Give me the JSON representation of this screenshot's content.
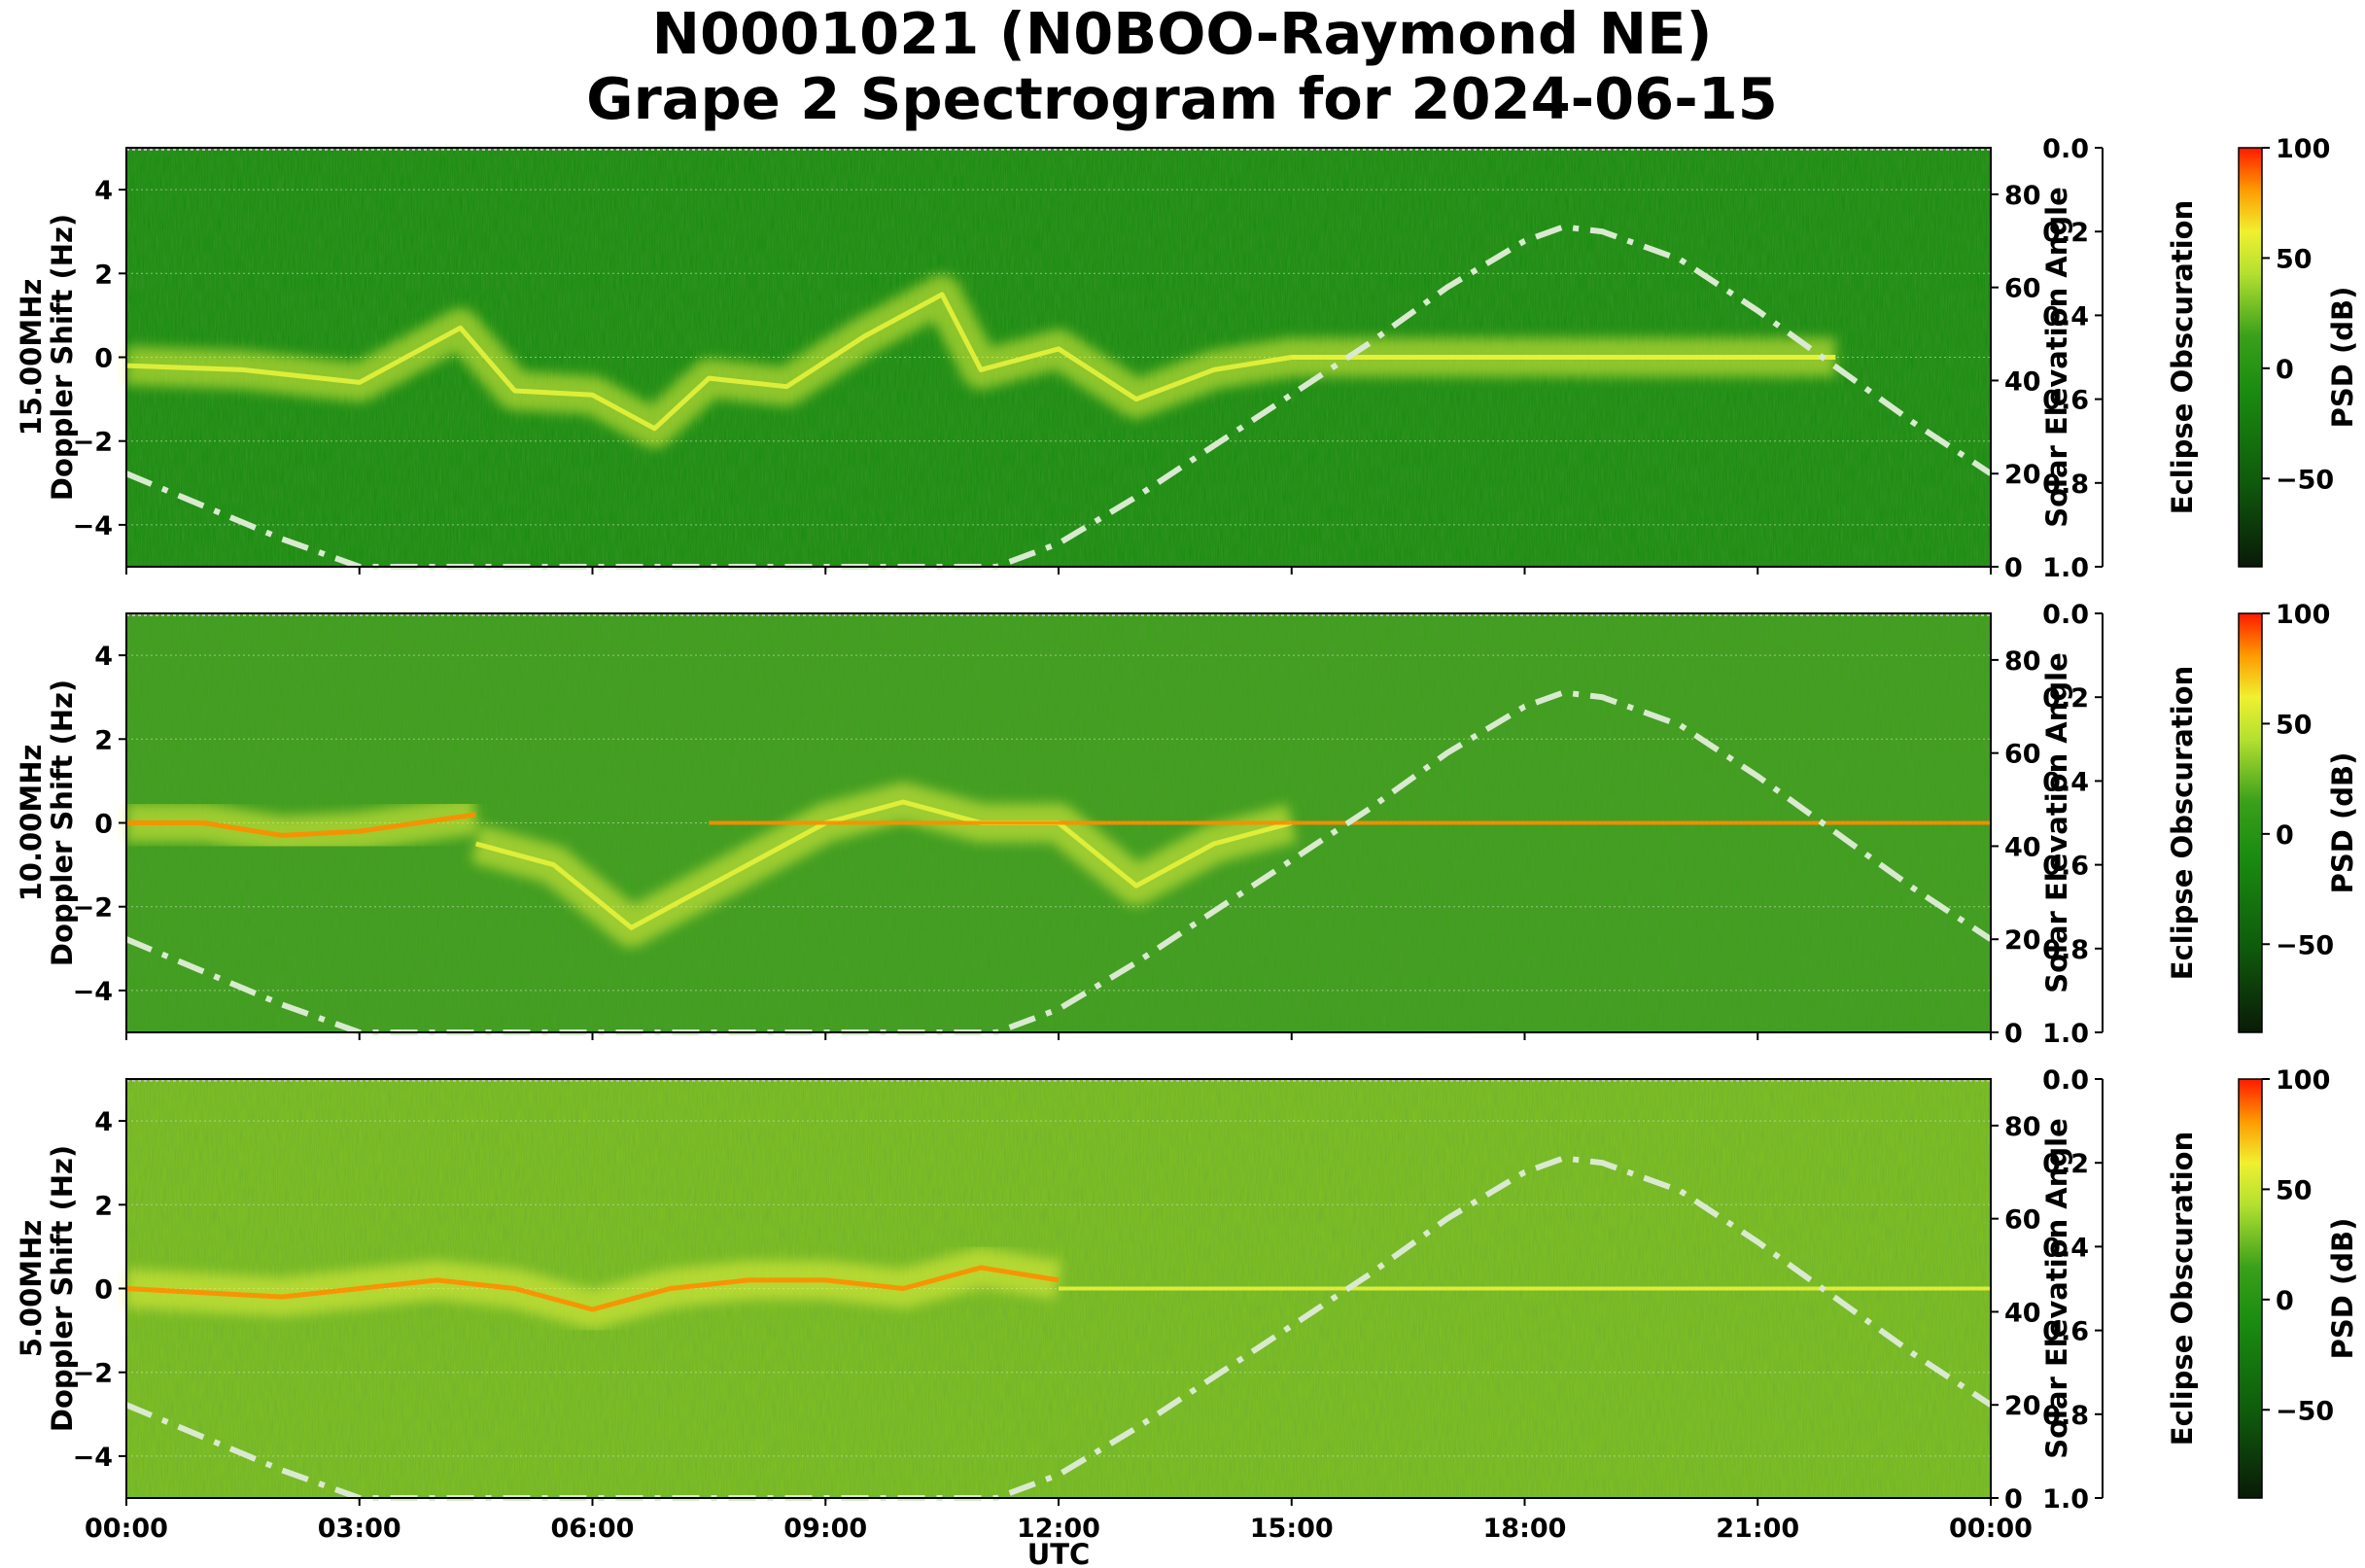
{
  "title_line1": "N0001021 (N0BOO-Raymond NE)",
  "title_line2": "Grape 2 Spectrogram for 2024-06-15",
  "colors": {
    "bg_green": "#1a8c10",
    "mid_green": "#5aaa20",
    "yellow": "#e6f23c",
    "orange": "#ff8c00",
    "red": "#ff1a00",
    "sun_curve": "#d9ead0"
  },
  "chart_data": [
    {
      "type": "heatmap",
      "panel_label": "15.00MHz",
      "ylabel": "Doppler Shift (Hz)",
      "xlabel": "",
      "ylim": [
        -5,
        5
      ],
      "yticks": [
        "4",
        "2",
        "0",
        "−2",
        "−4"
      ],
      "right_axis_label": "Solar Elevation Angle",
      "right_ylim": [
        0,
        90
      ],
      "right_ticks": [
        "80",
        "60",
        "40",
        "20",
        "0"
      ],
      "eclipse_label": "Eclipse Obscuration",
      "eclipse_ticks": [
        "0.0",
        "0.2",
        "0.4",
        "0.6",
        "0.8",
        "1.0"
      ],
      "colorbar_label": "PSD (dB)",
      "colorbar_ticks": [
        "100",
        "50",
        "0",
        "−50"
      ],
      "background": "green",
      "features": [
        {
          "type": "doppler_trace",
          "color": "yellow",
          "points": [
            [
              0,
              -0.2
            ],
            [
              1.5,
              -0.3
            ],
            [
              3,
              -0.6
            ],
            [
              4.3,
              0.7
            ],
            [
              5,
              -0.8
            ],
            [
              6,
              -0.9
            ],
            [
              6.8,
              -1.7
            ],
            [
              7.5,
              -0.5
            ],
            [
              8.5,
              -0.7
            ],
            [
              9.5,
              0.5
            ],
            [
              10.5,
              1.5
            ],
            [
              11,
              -0.3
            ],
            [
              12,
              0.2
            ],
            [
              13,
              -1
            ],
            [
              14,
              -0.3
            ],
            [
              15,
              0
            ],
            [
              18,
              0
            ],
            [
              19.5,
              0
            ],
            [
              22,
              0
            ]
          ]
        },
        {
          "type": "carrier",
          "color": "yellow",
          "from": 15,
          "to": 22,
          "y": 0
        }
      ],
      "solar_elevation": [
        [
          0,
          20
        ],
        [
          1,
          13
        ],
        [
          2,
          6
        ],
        [
          3,
          0
        ],
        [
          11.2,
          0
        ],
        [
          12,
          5
        ],
        [
          13,
          15
        ],
        [
          14,
          26
        ],
        [
          15,
          37
        ],
        [
          16,
          48
        ],
        [
          17,
          60
        ],
        [
          18,
          70
        ],
        [
          18.5,
          73
        ],
        [
          19,
          72
        ],
        [
          20,
          66
        ],
        [
          21,
          55
        ],
        [
          22,
          43
        ],
        [
          23,
          31
        ],
        [
          24,
          20
        ]
      ]
    },
    {
      "type": "heatmap",
      "panel_label": "10.00MHz",
      "ylabel": "Doppler Shift (Hz)",
      "xlabel": "",
      "ylim": [
        -5,
        5
      ],
      "yticks": [
        "4",
        "2",
        "0",
        "−2",
        "−4"
      ],
      "right_axis_label": "Solar Elevation Angle",
      "right_ylim": [
        0,
        90
      ],
      "right_ticks": [
        "80",
        "60",
        "40",
        "20",
        "0"
      ],
      "eclipse_label": "Eclipse Obscuration",
      "eclipse_ticks": [
        "0.0",
        "0.2",
        "0.4",
        "0.6",
        "0.8",
        "1.0"
      ],
      "colorbar_label": "PSD (dB)",
      "colorbar_ticks": [
        "100",
        "50",
        "0",
        "−50"
      ],
      "background": "lightgreen",
      "features": [
        {
          "type": "doppler_trace",
          "color": "orange",
          "points": [
            [
              0,
              0
            ],
            [
              1,
              0
            ],
            [
              2,
              -0.3
            ],
            [
              3,
              -0.2
            ],
            [
              4.5,
              0.2
            ]
          ]
        },
        {
          "type": "doppler_trace",
          "color": "yellow",
          "points": [
            [
              4.5,
              -0.5
            ],
            [
              5.5,
              -1
            ],
            [
              6.5,
              -2.5
            ],
            [
              7.5,
              -1.5
            ],
            [
              9,
              0
            ],
            [
              10,
              0.5
            ],
            [
              11,
              0
            ],
            [
              12,
              0
            ],
            [
              13,
              -1.5
            ],
            [
              14,
              -0.5
            ],
            [
              15,
              0
            ]
          ]
        },
        {
          "type": "carrier",
          "color": "orange",
          "from": 7.5,
          "to": 24,
          "y": 0
        }
      ],
      "solar_elevation": [
        [
          0,
          20
        ],
        [
          1,
          13
        ],
        [
          2,
          6
        ],
        [
          3,
          0
        ],
        [
          11.2,
          0
        ],
        [
          12,
          5
        ],
        [
          13,
          15
        ],
        [
          14,
          26
        ],
        [
          15,
          37
        ],
        [
          16,
          48
        ],
        [
          17,
          60
        ],
        [
          18,
          70
        ],
        [
          18.5,
          73
        ],
        [
          19,
          72
        ],
        [
          20,
          66
        ],
        [
          21,
          55
        ],
        [
          22,
          43
        ],
        [
          23,
          31
        ],
        [
          24,
          20
        ]
      ]
    },
    {
      "type": "heatmap",
      "panel_label": "5.00MHz",
      "ylabel": "Doppler Shift (Hz)",
      "xlabel": "UTC",
      "xticks": [
        "00:00",
        "03:00",
        "06:00",
        "09:00",
        "12:00",
        "15:00",
        "18:00",
        "21:00",
        "00:00"
      ],
      "ylim": [
        -5,
        5
      ],
      "yticks": [
        "4",
        "2",
        "0",
        "−2",
        "−4"
      ],
      "right_axis_label": "Solar Elevation Angle",
      "right_ylim": [
        0,
        90
      ],
      "right_ticks": [
        "80",
        "60",
        "40",
        "20",
        "0"
      ],
      "eclipse_label": "Eclipse Obscuration",
      "eclipse_ticks": [
        "0.0",
        "0.2",
        "0.4",
        "0.6",
        "0.8",
        "1.0"
      ],
      "colorbar_label": "PSD (dB)",
      "colorbar_ticks": [
        "100",
        "50",
        "0",
        "−50"
      ],
      "background": "yellowgreen",
      "features": [
        {
          "type": "doppler_trace",
          "color": "orange",
          "points": [
            [
              0,
              0
            ],
            [
              2,
              -0.2
            ],
            [
              4,
              0.2
            ],
            [
              5,
              0
            ],
            [
              6,
              -0.5
            ],
            [
              7,
              0
            ],
            [
              8,
              0.2
            ],
            [
              9,
              0.2
            ],
            [
              10,
              0
            ],
            [
              11,
              0.5
            ],
            [
              12,
              0.2
            ]
          ]
        },
        {
          "type": "carrier",
          "color": "yellow",
          "from": 12,
          "to": 24,
          "y": 0
        }
      ],
      "solar_elevation": [
        [
          0,
          20
        ],
        [
          1,
          13
        ],
        [
          2,
          6
        ],
        [
          3,
          0
        ],
        [
          11.2,
          0
        ],
        [
          12,
          5
        ],
        [
          13,
          15
        ],
        [
          14,
          26
        ],
        [
          15,
          37
        ],
        [
          16,
          48
        ],
        [
          17,
          60
        ],
        [
          18,
          70
        ],
        [
          18.5,
          73
        ],
        [
          19,
          72
        ],
        [
          20,
          66
        ],
        [
          21,
          55
        ],
        [
          22,
          43
        ],
        [
          23,
          31
        ],
        [
          24,
          20
        ]
      ]
    }
  ]
}
